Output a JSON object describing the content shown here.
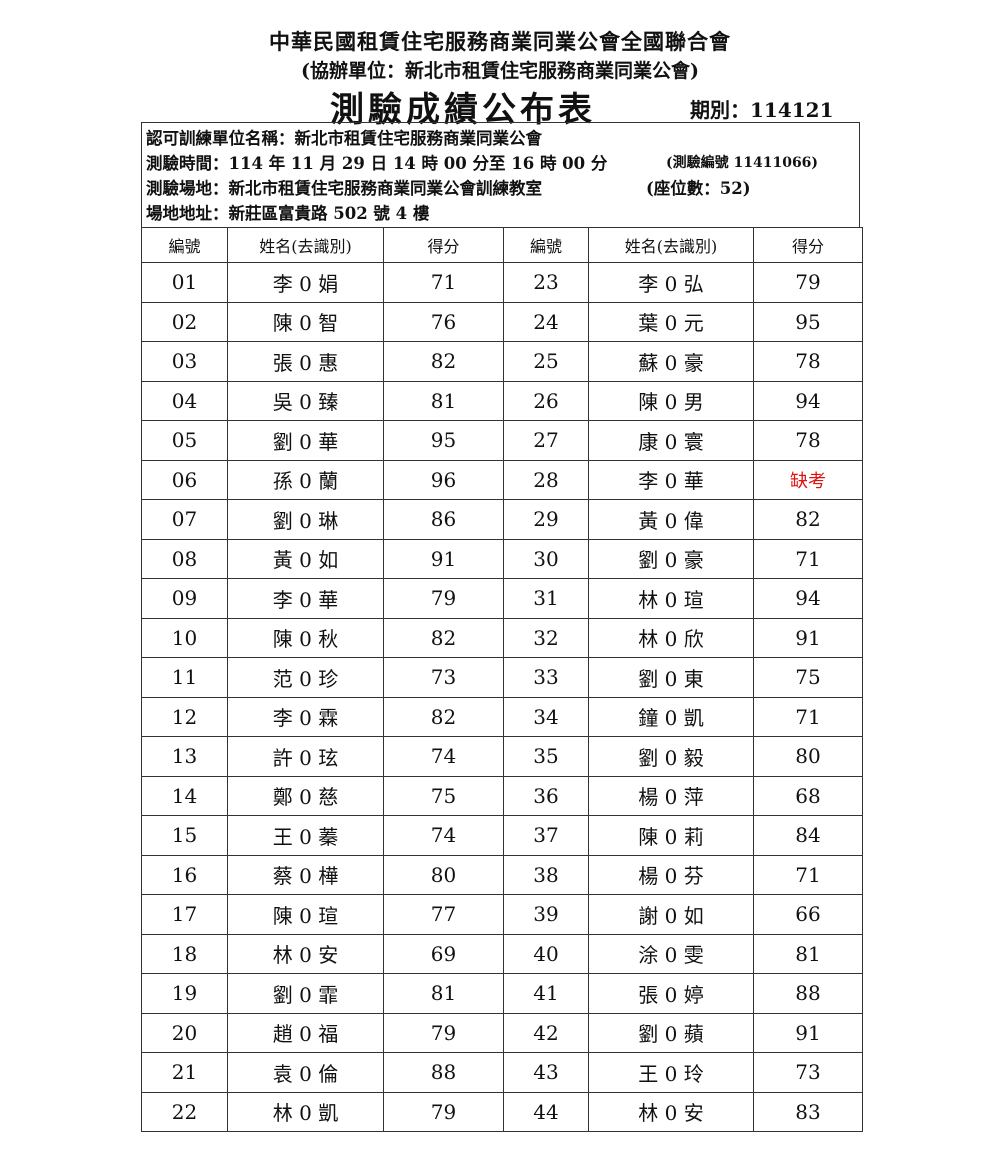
{
  "header": {
    "org": "中華民國租賃住宅服務商業同業公會全國聯合會",
    "co_organizer": "(協辦單位：新北市租賃住宅服務商業同業公會)",
    "title": "測驗成績公布表",
    "period": "期別：114121"
  },
  "info": {
    "unit": "認可訓練單位名稱：新北市租賃住宅服務商業同業公會",
    "time": "測驗時間：114 年 11 月 29 日 14 時 00 分至 16 時 00 分",
    "exam_no": "(測驗編號 11411066)",
    "venue": "測驗場地：新北市租賃住宅服務商業同業公會訓練教室",
    "seats": "(座位數：52)",
    "address": "場地地址：新莊區富貴路 502 號 4 樓"
  },
  "columns": [
    "編號",
    "姓名(去識別)",
    "得分",
    "編號",
    "姓名(去識別)",
    "得分"
  ],
  "absent_color": "#e01010",
  "rows": [
    {
      "l_no": "01",
      "l_name": "李 0 娟",
      "l_score": "71",
      "r_no": "23",
      "r_name": "李 0 弘",
      "r_score": "79"
    },
    {
      "l_no": "02",
      "l_name": "陳 0 智",
      "l_score": "76",
      "r_no": "24",
      "r_name": "葉 0 元",
      "r_score": "95"
    },
    {
      "l_no": "03",
      "l_name": "張 0 惠",
      "l_score": "82",
      "r_no": "25",
      "r_name": "蘇 0 豪",
      "r_score": "78"
    },
    {
      "l_no": "04",
      "l_name": "吳 0 臻",
      "l_score": "81",
      "r_no": "26",
      "r_name": "陳 0 男",
      "r_score": "94"
    },
    {
      "l_no": "05",
      "l_name": "劉 0 華",
      "l_score": "95",
      "r_no": "27",
      "r_name": "康 0 寰",
      "r_score": "78"
    },
    {
      "l_no": "06",
      "l_name": "孫 0 蘭",
      "l_score": "96",
      "r_no": "28",
      "r_name": "李 0 華",
      "r_score": "缺考"
    },
    {
      "l_no": "07",
      "l_name": "劉 0 琳",
      "l_score": "86",
      "r_no": "29",
      "r_name": "黃 0 偉",
      "r_score": "82"
    },
    {
      "l_no": "08",
      "l_name": "黃 0 如",
      "l_score": "91",
      "r_no": "30",
      "r_name": "劉 0 豪",
      "r_score": "71"
    },
    {
      "l_no": "09",
      "l_name": "李 0 華",
      "l_score": "79",
      "r_no": "31",
      "r_name": "林 0 瑄",
      "r_score": "94"
    },
    {
      "l_no": "10",
      "l_name": "陳 0 秋",
      "l_score": "82",
      "r_no": "32",
      "r_name": "林 0 欣",
      "r_score": "91"
    },
    {
      "l_no": "11",
      "l_name": "范 0 珍",
      "l_score": "73",
      "r_no": "33",
      "r_name": "劉 0 東",
      "r_score": "75"
    },
    {
      "l_no": "12",
      "l_name": "李 0 霖",
      "l_score": "82",
      "r_no": "34",
      "r_name": "鐘 0 凱",
      "r_score": "71"
    },
    {
      "l_no": "13",
      "l_name": "許 0 玹",
      "l_score": "74",
      "r_no": "35",
      "r_name": "劉 0 毅",
      "r_score": "80"
    },
    {
      "l_no": "14",
      "l_name": "鄭 0 慈",
      "l_score": "75",
      "r_no": "36",
      "r_name": "楊 0 萍",
      "r_score": "68"
    },
    {
      "l_no": "15",
      "l_name": "王 0 蓁",
      "l_score": "74",
      "r_no": "37",
      "r_name": "陳 0 莉",
      "r_score": "84"
    },
    {
      "l_no": "16",
      "l_name": "蔡 0 樺",
      "l_score": "80",
      "r_no": "38",
      "r_name": "楊 0 芬",
      "r_score": "71"
    },
    {
      "l_no": "17",
      "l_name": "陳 0 瑄",
      "l_score": "77",
      "r_no": "39",
      "r_name": "謝 0 如",
      "r_score": "66"
    },
    {
      "l_no": "18",
      "l_name": "林 0 安",
      "l_score": "69",
      "r_no": "40",
      "r_name": "涂 0 雯",
      "r_score": "81"
    },
    {
      "l_no": "19",
      "l_name": "劉 0 霏",
      "l_score": "81",
      "r_no": "41",
      "r_name": "張 0 婷",
      "r_score": "88"
    },
    {
      "l_no": "20",
      "l_name": "趙 0 福",
      "l_score": "79",
      "r_no": "42",
      "r_name": "劉 0 蘋",
      "r_score": "91"
    },
    {
      "l_no": "21",
      "l_name": "袁 0 倫",
      "l_score": "88",
      "r_no": "43",
      "r_name": "王 0 玲",
      "r_score": "73"
    },
    {
      "l_no": "22",
      "l_name": "林 0 凱",
      "l_score": "79",
      "r_no": "44",
      "r_name": "林 0 安",
      "r_score": "83"
    }
  ]
}
